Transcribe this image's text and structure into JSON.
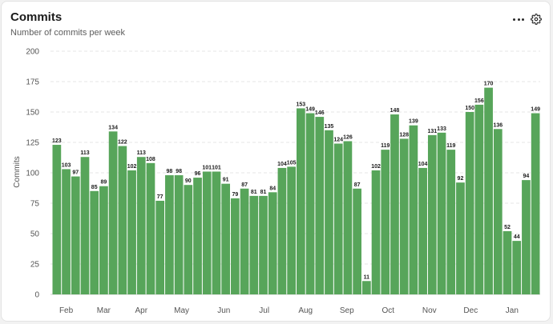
{
  "header": {
    "title": "Commits",
    "subtitle": "Number of commits per week"
  },
  "icons": {
    "more": "more-horizontal-icon",
    "settings": "gear-icon"
  },
  "colors": {
    "bar": "#57a55a",
    "grid": "#e4e4e4"
  },
  "chart_data": {
    "type": "bar",
    "ylabel": "Commits",
    "ylim": [
      0,
      200
    ],
    "yticks": [
      0,
      25,
      50,
      75,
      100,
      125,
      150,
      175,
      200
    ],
    "grid": true,
    "month_labels": [
      "Feb",
      "Mar",
      "Apr",
      "May",
      "Jun",
      "Jul",
      "Aug",
      "Sep",
      "Oct",
      "Nov",
      "Dec",
      "Jan"
    ],
    "month_label_week_positions": [
      1.5,
      5.5,
      9.5,
      13.8,
      18.3,
      22.6,
      27.0,
      31.4,
      35.8,
      40.2,
      44.6,
      49.0
    ],
    "values": [
      123,
      103,
      97,
      113,
      85,
      89,
      134,
      122,
      102,
      113,
      108,
      77,
      98,
      98,
      90,
      96,
      101,
      101,
      91,
      79,
      87,
      81,
      81,
      84,
      104,
      105,
      153,
      149,
      146,
      135,
      124,
      126,
      87,
      11,
      102,
      119,
      148,
      128,
      139,
      104,
      131,
      133,
      119,
      92,
      150,
      156,
      170,
      136,
      52,
      44,
      94,
      149
    ]
  }
}
